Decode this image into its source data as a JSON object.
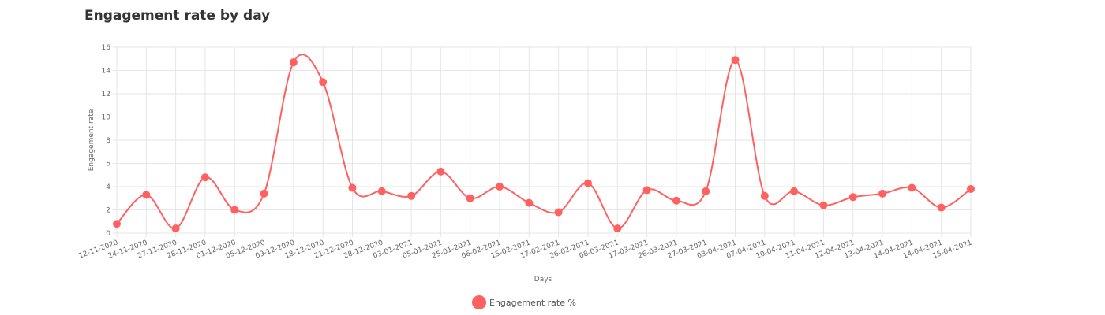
{
  "colors": {
    "series": "#ff6161",
    "grid": "#e6e6e6",
    "text": "#666666"
  },
  "chart_data": {
    "type": "line",
    "title": "Engagement rate by day",
    "xlabel": "Days",
    "ylabel": "Engagement rate",
    "ylim": [
      0,
      16
    ],
    "yticks": [
      0,
      2,
      4,
      6,
      8,
      10,
      12,
      14,
      16
    ],
    "grid": true,
    "legend_position": "bottom",
    "categories": [
      "12-11-2020",
      "24-11-2020",
      "27-11-2020",
      "28-11-2020",
      "01-12-2020",
      "05-12-2020",
      "09-12-2020",
      "18-12-2020",
      "21-12-2020",
      "28-12-2020",
      "03-01-2021",
      "05-01-2021",
      "25-01-2021",
      "06-02-2021",
      "15-02-2021",
      "17-02-2021",
      "26-02-2021",
      "08-03-2021",
      "17-03-2021",
      "26-03-2021",
      "27-03-2021",
      "03-04-2021",
      "07-04-2021",
      "10-04-2021",
      "11-04-2021",
      "12-04-2021",
      "13-04-2021",
      "14-04-2021",
      "14-04-2021",
      "15-04-2021"
    ],
    "series": [
      {
        "name": "Engagement rate %",
        "values": [
          0.8,
          3.3,
          0.4,
          4.8,
          2.0,
          3.4,
          14.7,
          13.0,
          3.9,
          3.6,
          3.2,
          5.3,
          3.0,
          4.0,
          2.6,
          1.8,
          4.3,
          0.4,
          3.7,
          2.8,
          3.6,
          14.9,
          3.2,
          3.6,
          2.4,
          3.1,
          3.4,
          3.9,
          2.2,
          3.8
        ]
      }
    ]
  }
}
